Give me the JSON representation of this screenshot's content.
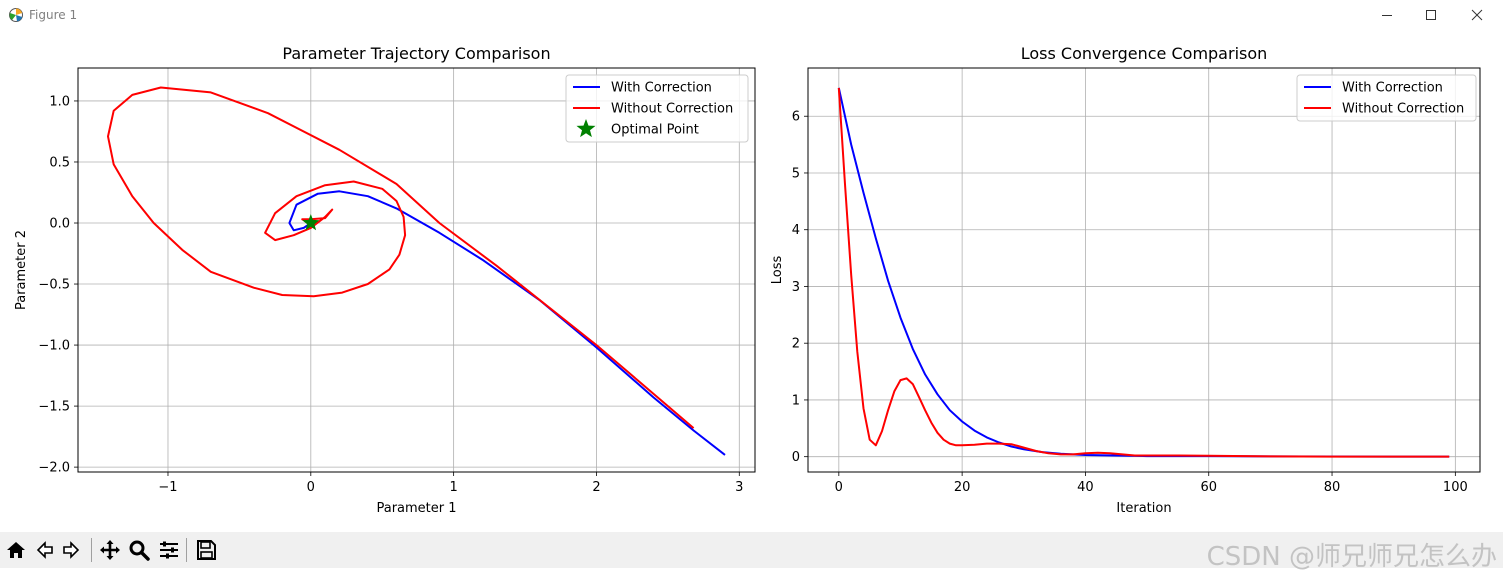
{
  "window": {
    "title": "Figure 1"
  },
  "watermark": "CSDN @师兄师兄怎么办",
  "colors": {
    "with": "#0000ff",
    "without": "#ff0000",
    "optimal": "#008000",
    "grid": "#b0b0b0"
  },
  "toolbar": {
    "icons": [
      "home-icon",
      "back-icon",
      "forward-icon",
      "pan-icon",
      "zoom-icon",
      "configure-subplots-icon",
      "save-icon"
    ]
  },
  "chart_data": [
    {
      "type": "line",
      "title": "Parameter Trajectory Comparison",
      "xlabel": "Parameter 1",
      "ylabel": "Parameter 2",
      "xlim": [
        -1.63,
        3.11
      ],
      "ylim": [
        -2.04,
        1.27
      ],
      "xticks": [
        -1,
        0,
        1,
        2,
        3
      ],
      "yticks": [
        -2.0,
        -1.5,
        -1.0,
        -0.5,
        0.0,
        0.5,
        1.0
      ],
      "xtick_labels": [
        "−1",
        "0",
        "1",
        "2",
        "3"
      ],
      "ytick_labels": [
        "−2.0",
        "−1.5",
        "−1.0",
        "−0.5",
        "0.0",
        "0.5",
        "1.0"
      ],
      "grid": true,
      "legend": {
        "location": "upper right",
        "entries": [
          "With Correction",
          "Without Correction",
          "Optimal Point"
        ]
      },
      "series": [
        {
          "name": "With Correction",
          "x": [
            2.9,
            2.68,
            2.4,
            2.0,
            1.6,
            1.2,
            0.9,
            0.6,
            0.4,
            0.2,
            0.05,
            -0.1,
            -0.15,
            -0.12,
            -0.05,
            0.0
          ],
          "y": [
            -1.9,
            -1.7,
            -1.43,
            -1.02,
            -0.63,
            -0.3,
            -0.08,
            0.12,
            0.22,
            0.26,
            0.24,
            0.15,
            0.0,
            -0.06,
            -0.04,
            0.0
          ]
        },
        {
          "name": "Without Correction",
          "x": [
            2.68,
            2.0,
            1.3,
            0.9,
            0.6,
            0.2,
            -0.3,
            -0.7,
            -1.05,
            -1.25,
            -1.38,
            -1.42,
            -1.38,
            -1.25,
            -1.1,
            -0.9,
            -0.7,
            -0.4,
            -0.2,
            0.02,
            0.22,
            0.4,
            0.55,
            0.62,
            0.66,
            0.65,
            0.6,
            0.5,
            0.3,
            0.1,
            -0.1,
            -0.25,
            -0.32,
            -0.25,
            -0.12,
            0.0,
            0.1,
            0.15,
            0.1,
            0.0,
            -0.06,
            0.0
          ],
          "y": [
            -1.68,
            -1.0,
            -0.35,
            0.0,
            0.32,
            0.6,
            0.9,
            1.07,
            1.11,
            1.05,
            0.92,
            0.71,
            0.48,
            0.22,
            0.0,
            -0.22,
            -0.4,
            -0.53,
            -0.59,
            -0.6,
            -0.57,
            -0.5,
            -0.38,
            -0.26,
            -0.1,
            0.05,
            0.18,
            0.28,
            0.34,
            0.31,
            0.22,
            0.08,
            -0.08,
            -0.14,
            -0.1,
            -0.04,
            0.05,
            0.11,
            0.04,
            0.03,
            0.03,
            0.0
          ]
        }
      ],
      "optimal_point": {
        "label": "Optimal Point",
        "x": 0.0,
        "y": 0.0
      }
    },
    {
      "type": "line",
      "title": "Loss Convergence Comparison",
      "xlabel": "Iteration",
      "ylabel": "Loss",
      "xlim": [
        -5,
        104
      ],
      "ylim": [
        -0.27,
        6.85
      ],
      "xticks": [
        0,
        20,
        40,
        60,
        80,
        100
      ],
      "yticks": [
        0,
        1,
        2,
        3,
        4,
        5,
        6
      ],
      "xtick_labels": [
        "0",
        "20",
        "40",
        "60",
        "80",
        "100"
      ],
      "ytick_labels": [
        "0",
        "1",
        "2",
        "3",
        "4",
        "5",
        "6"
      ],
      "grid": true,
      "legend": {
        "location": "upper right",
        "entries": [
          "With Correction",
          "Without Correction"
        ]
      },
      "series": [
        {
          "name": "With Correction",
          "x": [
            0,
            2,
            4,
            6,
            8,
            10,
            12,
            14,
            16,
            18,
            20,
            22,
            24,
            26,
            28,
            30,
            33,
            36,
            40,
            45,
            50,
            60,
            70,
            80,
            90,
            99
          ],
          "y": [
            6.5,
            5.5,
            4.65,
            3.85,
            3.1,
            2.45,
            1.9,
            1.45,
            1.1,
            0.82,
            0.62,
            0.46,
            0.34,
            0.25,
            0.18,
            0.13,
            0.08,
            0.05,
            0.03,
            0.02,
            0.01,
            0.01,
            0.005,
            0.003,
            0.002,
            0.001
          ]
        },
        {
          "name": "Without Correction",
          "x": [
            0,
            1,
            2,
            3,
            4,
            5,
            6,
            7,
            8,
            9,
            10,
            11,
            12,
            13,
            14,
            15,
            16,
            17,
            18,
            19,
            20,
            22,
            24,
            26,
            28,
            30,
            32,
            34,
            36,
            38,
            40,
            42,
            44,
            46,
            48,
            50,
            55,
            60,
            70,
            80,
            90,
            99
          ],
          "y": [
            6.5,
            4.8,
            3.2,
            1.85,
            0.85,
            0.3,
            0.2,
            0.45,
            0.82,
            1.15,
            1.35,
            1.38,
            1.28,
            1.05,
            0.82,
            0.6,
            0.42,
            0.3,
            0.23,
            0.2,
            0.2,
            0.21,
            0.23,
            0.23,
            0.22,
            0.16,
            0.1,
            0.06,
            0.04,
            0.04,
            0.06,
            0.07,
            0.06,
            0.04,
            0.02,
            0.02,
            0.02,
            0.015,
            0.005,
            0.002,
            0.002,
            0.002
          ]
        }
      ]
    }
  ]
}
